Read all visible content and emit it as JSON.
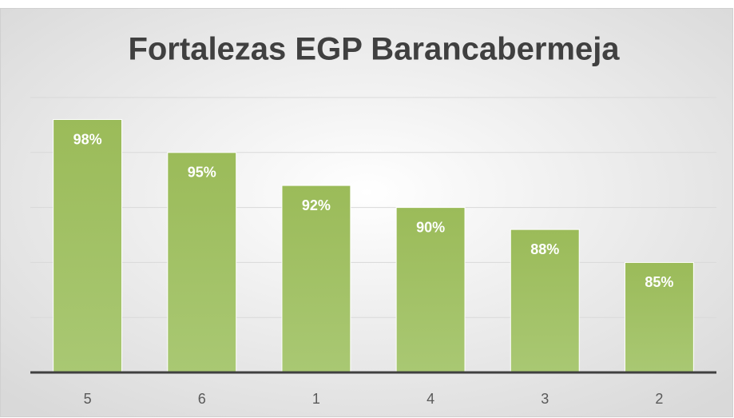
{
  "chart_data": {
    "type": "bar",
    "title": "Fortalezas EGP Barancabermeja",
    "categories": [
      "5",
      "6",
      "1",
      "4",
      "3",
      "2"
    ],
    "values": [
      98,
      95,
      92,
      90,
      88,
      85
    ],
    "value_labels": [
      "98%",
      "95%",
      "92%",
      "90%",
      "88%",
      "85%"
    ],
    "color": "#9bbb59",
    "ylim": [
      75,
      100
    ],
    "yticks": [
      75,
      80,
      85,
      90,
      95,
      100
    ],
    "grid": true
  }
}
